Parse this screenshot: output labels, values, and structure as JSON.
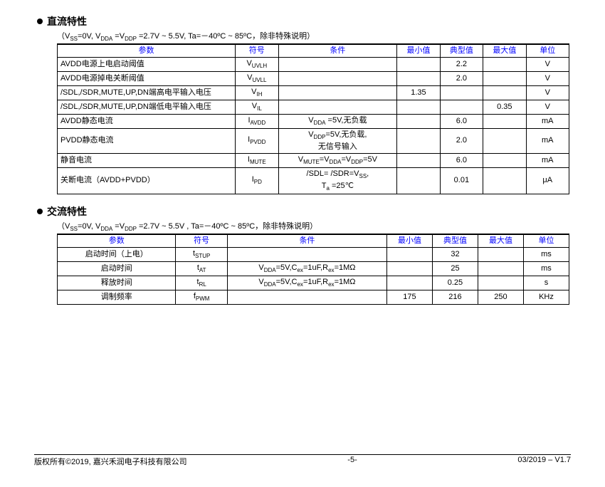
{
  "dc": {
    "title": "直流特性",
    "conditions_html": "（V<span class='sub'>SS</span>=0V, V<span class='sub'>DDA</span> =V<span class='sub'>DDP</span> =2.7V ~ 5.5V, Ta=－40ºC ~ 85ºC，除非特殊说明）",
    "headers": [
      "参数",
      "符号",
      "条件",
      "最小值",
      "典型值",
      "最大值",
      "单位"
    ],
    "rows": [
      {
        "param": "AVDD电源上电启动阈值",
        "sym": "V<span class='sub'>UVLH</span>",
        "cond": "",
        "min": "",
        "typ": "2.2",
        "max": "",
        "unit": "V"
      },
      {
        "param": "AVDD电源掉电关断阈值",
        "sym": "V<span class='sub'>UVLL</span>",
        "cond": "",
        "min": "",
        "typ": "2.0",
        "max": "",
        "unit": "V"
      },
      {
        "param": "/SDL,/SDR,MUTE,UP,DN端高电平输入电压",
        "sym": "V<span class='sub'>IH</span>",
        "cond": "",
        "min": "1.35",
        "typ": "",
        "max": "",
        "unit": "V"
      },
      {
        "param": "/SDL,/SDR,MUTE,UP,DN端低电平输入电压",
        "sym": "V<span class='sub'>IL</span>",
        "cond": "",
        "min": "",
        "typ": "",
        "max": "0.35",
        "unit": "V"
      },
      {
        "param": "AVDD静态电流",
        "sym": "I<span class='sub'>AVDD</span>",
        "cond": "V<span class='sub'>DDA</span> =5V,无负载",
        "min": "",
        "typ": "6.0",
        "max": "",
        "unit": "mA"
      },
      {
        "param": "PVDD静态电流",
        "sym": "I<span class='sub'>PVDD</span>",
        "cond": "V<span class='sub'>DDP</span>=5V,无负载,<br>无信号输入",
        "min": "",
        "typ": "2.0",
        "max": "",
        "unit": "mA"
      },
      {
        "param": "静音电流",
        "sym": "I<span class='sub'>MUTE</span>",
        "cond": "V<span class='sub'>MUTE</span>=V<span class='sub'>DDA</span>=V<span class='sub'>DDP</span>=5V",
        "min": "",
        "typ": "6.0",
        "max": "",
        "unit": "mA"
      },
      {
        "param": "关断电流（AVDD+PVDD）",
        "sym": "I<span class='sub'>PD</span>",
        "cond": "/SDL= /SDR=V<span class='sub'>SS</span>,<br>T<span class='sub'>a</span> =25℃",
        "min": "",
        "typ": "0.01",
        "max": "",
        "unit": "μA"
      }
    ]
  },
  "ac": {
    "title": "交流特性",
    "conditions_html": "（V<span class='sub'>SS</span>=0V, V<span class='sub'>DDA</span> =V<span class='sub'>DDP</span> =2.7V ~ 5.5V , Ta=－40ºC ~ 85ºC，除非特殊说明）",
    "headers": [
      "参数",
      "符号",
      "条件",
      "最小值",
      "典型值",
      "最大值",
      "单位"
    ],
    "rows": [
      {
        "param": "启动时间（上电）",
        "sym": "t<span class='sub'>STUP</span>",
        "cond": "",
        "min": "",
        "typ": "32",
        "max": "",
        "unit": "ms"
      },
      {
        "param": "启动时间",
        "sym": "t<span class='sub'>AT</span>",
        "cond": "V<span class='sub'>DDA</span>=5V,C<span class='sub'>ex</span>=1uF,R<span class='sub'>ex</span>=1MΩ",
        "min": "",
        "typ": "25",
        "max": "",
        "unit": "ms"
      },
      {
        "param": "释放时间",
        "sym": "t<span class='sub'>RL</span>",
        "cond": "V<span class='sub'>DDA</span>=5V,C<span class='sub'>ex</span>=1uF,R<span class='sub'>ex</span>=1MΩ",
        "min": "",
        "typ": "0.25",
        "max": "",
        "unit": "s"
      },
      {
        "param": "调制频率",
        "sym": "f<span class='sub'>PWM</span>",
        "cond": "",
        "min": "175",
        "typ": "216",
        "max": "250",
        "unit": "KHz"
      }
    ]
  },
  "footer": {
    "left": "版权所有©2019, 嘉兴禾润电子科技有限公司",
    "center": "-5-",
    "right": "03/2019 – V1.7"
  }
}
